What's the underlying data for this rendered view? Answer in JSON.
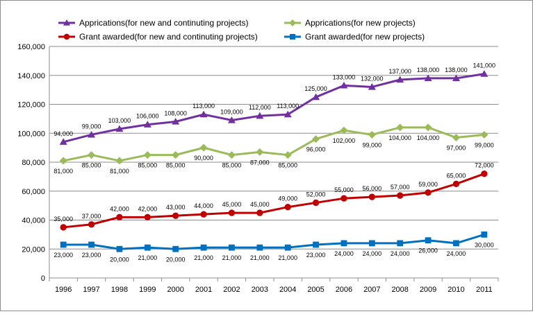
{
  "chart_data": {
    "type": "line",
    "title": "",
    "xlabel": "",
    "ylabel": "",
    "ylim": [
      0,
      160000
    ],
    "yticks": [
      0,
      20000,
      40000,
      60000,
      80000,
      100000,
      120000,
      140000,
      160000
    ],
    "ytick_labels": [
      "0",
      "20,000",
      "40,000",
      "60,000",
      "80,000",
      "100,000",
      "120,000",
      "140,000",
      "160,000"
    ],
    "categories": [
      "1996",
      "1997",
      "1998",
      "1999",
      "2000",
      "2001",
      "2002",
      "2003",
      "2004",
      "2005",
      "2006",
      "2007",
      "2008",
      "2009",
      "2010",
      "2011"
    ],
    "grid": "horizontal",
    "legend_position": "top",
    "series": [
      {
        "name": "Appricati​ons(for new and continuting projects)",
        "color": "#7030a0",
        "marker": "triangle",
        "label_position": "above",
        "values": [
          94000,
          99000,
          103000,
          106000,
          108000,
          113000,
          109000,
          112000,
          113000,
          125000,
          133000,
          132000,
          137000,
          138000,
          138000,
          141000
        ],
        "labels": [
          "94,000",
          "99,000",
          "103,000",
          "106,000",
          "108,000",
          "113,000",
          "109,000",
          "112,000",
          "113,000",
          "125,000",
          "133,000",
          "132,000",
          "137,000",
          "138,000",
          "138,000",
          "141,000"
        ]
      },
      {
        "name": "Appricati​ons(for new projects)",
        "color": "#9bbb59",
        "marker": "diamond",
        "label_position": "below",
        "values": [
          81000,
          85000,
          81000,
          85000,
          85000,
          90000,
          85000,
          87000,
          85000,
          96000,
          102000,
          99000,
          104000,
          104000,
          97000,
          99000
        ],
        "labels": [
          "81,000",
          "85,000",
          "81,000",
          "85,000",
          "85,000",
          "90,000",
          "85,000",
          "87,000",
          "85,000",
          "96,000",
          "102,000",
          "99,000",
          "104,000",
          "104,000",
          "97,000",
          "99,000"
        ]
      },
      {
        "name": "Grant awarded(for new and continuting projects)",
        "color": "#c00000",
        "marker": "circle",
        "label_position": "above",
        "values": [
          35000,
          37000,
          42000,
          42000,
          43000,
          44000,
          45000,
          45000,
          49000,
          52000,
          55000,
          56000,
          57000,
          59000,
          65000,
          72000
        ],
        "labels": [
          "35,000",
          "37,000",
          "42,000",
          "42,000",
          "43,000",
          "44,000",
          "45,000",
          "45,000",
          "49,000",
          "52,000",
          "55,000",
          "56,000",
          "57,000",
          "59,000",
          "65,000",
          "72,000"
        ]
      },
      {
        "name": "Grant awarded(for new projects)",
        "color": "#0070c0",
        "marker": "square",
        "label_position": "below",
        "values": [
          23000,
          23000,
          20000,
          21000,
          20000,
          21000,
          21000,
          21000,
          21000,
          23000,
          24000,
          24000,
          24000,
          26000,
          24000,
          30000
        ],
        "labels": [
          "23,000",
          "23,000",
          "20,000",
          "21,000",
          "20,000",
          "21,000",
          "21,000",
          "21,000",
          "21,000",
          "23,000",
          "24,000",
          "24,000",
          "24,000",
          "26,000",
          "24,000",
          "30,000"
        ]
      }
    ]
  }
}
